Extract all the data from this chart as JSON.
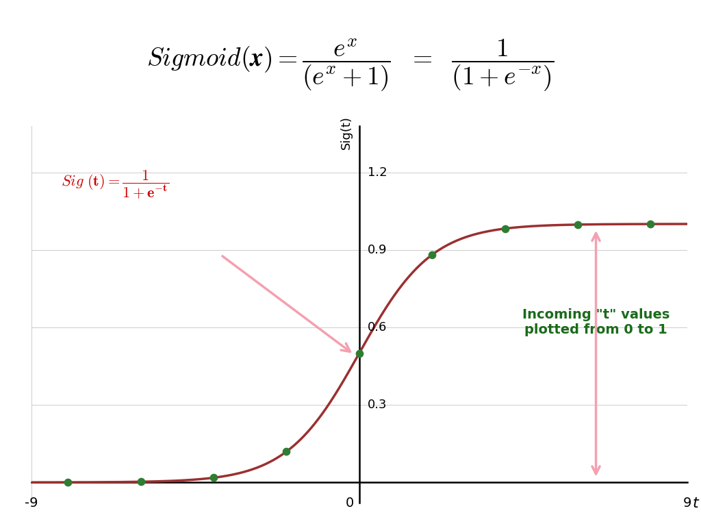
{
  "xlabel": "t",
  "ylabel": "Sig(t)",
  "xlim": [
    -9,
    9
  ],
  "ylim": [
    -0.08,
    1.38
  ],
  "ytick_vals": [
    0.3,
    0.6,
    0.9,
    1.2
  ],
  "ytick_labels": [
    "0.3",
    "0.6",
    "0.9",
    "1.2"
  ],
  "xtick_vals": [
    -9,
    0,
    9
  ],
  "xtick_labels": [
    "-9",
    "0",
    "9"
  ],
  "curve_color": "#9b3030",
  "dot_color": "#2e7d32",
  "dot_x_values": [
    -8,
    -6,
    -4,
    -2,
    0,
    2,
    4,
    6,
    8
  ],
  "bg_color": "#ffffff",
  "grid_color": "#cccccc",
  "arrow_color": "#f4a0b0",
  "annotation_color_red": "#cc0000",
  "annotation_color_green": "#1a6b1a"
}
